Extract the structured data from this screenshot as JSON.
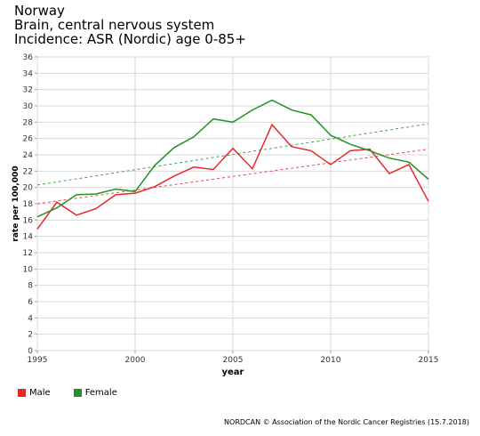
{
  "header": {
    "line1": "Norway",
    "line2": "Brain, central nervous system",
    "line3": "Incidence: ASR (Nordic) age 0-85+"
  },
  "chart_data": {
    "type": "line",
    "xlabel": "year",
    "ylabel": "rate per 100,000",
    "xlim": [
      1995,
      2015
    ],
    "ylim": [
      0,
      36
    ],
    "yticks": [
      0,
      2,
      4,
      6,
      8,
      10,
      12,
      14,
      16,
      18,
      20,
      22,
      24,
      26,
      28,
      30,
      32,
      34,
      36
    ],
    "xticks": [
      1995,
      2000,
      2005,
      2010,
      2015
    ],
    "grid": true,
    "x": [
      1995,
      1996,
      1997,
      1998,
      1999,
      2000,
      2001,
      2002,
      2003,
      2004,
      2005,
      2006,
      2007,
      2008,
      2009,
      2010,
      2011,
      2012,
      2013,
      2014,
      2015
    ],
    "series": [
      {
        "name": "Male",
        "color": "#e8282b",
        "values": [
          14.9,
          18.2,
          16.6,
          17.4,
          19.1,
          19.3,
          20.1,
          21.4,
          22.5,
          22.2,
          24.8,
          22.3,
          27.7,
          25.0,
          24.5,
          22.8,
          24.5,
          24.7,
          21.7,
          22.8,
          18.3
        ],
        "trend": [
          18.0,
          24.7
        ]
      },
      {
        "name": "Female",
        "color": "#23902a",
        "values": [
          16.4,
          17.5,
          19.1,
          19.2,
          19.8,
          19.5,
          22.7,
          24.9,
          26.2,
          28.4,
          28.0,
          29.5,
          30.7,
          29.5,
          28.9,
          26.4,
          25.3,
          24.5,
          23.6,
          23.1,
          21.0
        ],
        "trend": [
          20.3,
          27.8
        ]
      }
    ],
    "legend_position": "bottom-left"
  },
  "footer": {
    "credit": "NORDCAN © Association of the Nordic Cancer Registries (15.7.2018)"
  }
}
